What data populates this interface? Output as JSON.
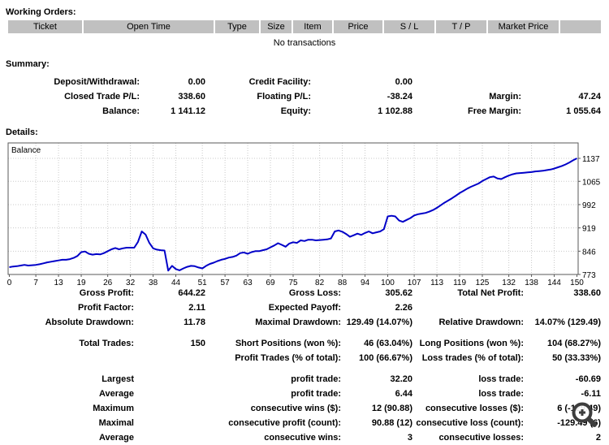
{
  "working_orders": {
    "title": "Working Orders:",
    "columns": [
      "Ticket",
      "Open Time",
      "Type",
      "Size",
      "Item",
      "Price",
      "S / L",
      "T / P",
      "Market Price"
    ],
    "empty_message": "No transactions"
  },
  "summary": {
    "title": "Summary:",
    "rows": [
      [
        "Deposit/Withdrawal:",
        "0.00",
        "Credit Facility:",
        "0.00",
        "",
        ""
      ],
      [
        "Closed Trade P/L:",
        "338.60",
        "Floating P/L:",
        "-38.24",
        "Margin:",
        "47.24"
      ],
      [
        "Balance:",
        "1 141.12",
        "Equity:",
        "1 102.88",
        "Free Margin:",
        "1 055.64"
      ]
    ]
  },
  "details": {
    "title": "Details:"
  },
  "chart_data": {
    "type": "line",
    "title": "Balance",
    "legend": [
      "Balance"
    ],
    "xlabel": "",
    "ylabel": "",
    "xlim": [
      0,
      150
    ],
    "ylim": [
      773,
      1137
    ],
    "grid": true,
    "x_ticks": [
      0,
      7,
      13,
      19,
      26,
      32,
      38,
      44,
      51,
      57,
      63,
      69,
      75,
      82,
      88,
      94,
      100,
      107,
      113,
      119,
      125,
      132,
      138,
      144,
      150
    ],
    "y_ticks": [
      773,
      846,
      919,
      992,
      1065,
      1137
    ],
    "line_color": "#0000C8",
    "series": [
      {
        "name": "Balance",
        "x_start": 0,
        "x_step": 1,
        "values": [
          796,
          798,
          799,
          801,
          803,
          801,
          802,
          803,
          805,
          808,
          811,
          813,
          815,
          817,
          819,
          819,
          821,
          825,
          831,
          843,
          845,
          838,
          835,
          837,
          836,
          840,
          846,
          852,
          856,
          852,
          855,
          857,
          857,
          857,
          875,
          908,
          898,
          872,
          855,
          851,
          849,
          848,
          785,
          800,
          790,
          786,
          792,
          797,
          800,
          799,
          795,
          792,
          800,
          806,
          810,
          815,
          819,
          822,
          826,
          828,
          832,
          840,
          842,
          838,
          843,
          846,
          846,
          849,
          852,
          858,
          864,
          871,
          866,
          860,
          870,
          874,
          872,
          880,
          878,
          882,
          882,
          880,
          881,
          882,
          883,
          886,
          908,
          911,
          907,
          900,
          891,
          896,
          901,
          897,
          903,
          908,
          902,
          905,
          908,
          915,
          955,
          957,
          955,
          942,
          938,
          944,
          950,
          958,
          962,
          964,
          966,
          970,
          975,
          982,
          990,
          998,
          1005,
          1012,
          1020,
          1028,
          1035,
          1042,
          1048,
          1053,
          1058,
          1066,
          1072,
          1078,
          1080,
          1074,
          1072,
          1078,
          1083,
          1087,
          1090,
          1091,
          1092,
          1093,
          1094,
          1096,
          1097,
          1098,
          1100,
          1102,
          1105,
          1109,
          1113,
          1118,
          1124,
          1131,
          1137
        ]
      }
    ]
  },
  "stats": {
    "sections": [
      {
        "rows": [
          [
            "Gross Profit:",
            "644.22",
            "Gross Loss:",
            "305.62",
            "Total Net Profit:",
            "338.60"
          ],
          [
            "Profit Factor:",
            "2.11",
            "Expected Payoff:",
            "2.26",
            "",
            ""
          ],
          [
            "Absolute Drawdown:",
            "11.78",
            "Maximal Drawdown:",
            "129.49 (14.07%)",
            "Relative Drawdown:",
            "14.07% (129.49)"
          ]
        ]
      },
      {
        "rows": [
          [
            "Total Trades:",
            "150",
            "Short Positions (won %):",
            "46 (63.04%)",
            "Long Positions (won %):",
            "104 (68.27%)"
          ],
          [
            "",
            "",
            "Profit Trades (% of total):",
            "100 (66.67%)",
            "Loss trades (% of total):",
            "50 (33.33%)"
          ]
        ]
      },
      {
        "rows": [
          [
            "Largest",
            "",
            "profit trade:",
            "32.20",
            "loss trade:",
            "-60.69"
          ],
          [
            "Average",
            "",
            "profit trade:",
            "6.44",
            "loss trade:",
            "-6.11"
          ],
          [
            "Maximum",
            "",
            "consecutive wins ($):",
            "12 (90.88)",
            "consecutive losses ($):",
            "6 (-129.49)"
          ],
          [
            "Maximal",
            "",
            "consecutive profit (count):",
            "90.88 (12)",
            "consecutive loss (count):",
            "-129.49 (6)"
          ],
          [
            "Average",
            "",
            "consecutive wins:",
            "3",
            "consecutive losses:",
            "2"
          ]
        ]
      }
    ]
  },
  "colors": {
    "header_bg": "#c0c0c0",
    "line": "#0000C8",
    "grid": "#c9c9c9",
    "plot_border": "#5a5a5a",
    "cursor": "#3d3d3d"
  },
  "cursor_overlay": {
    "icon": "zoom-in-magnifier"
  }
}
